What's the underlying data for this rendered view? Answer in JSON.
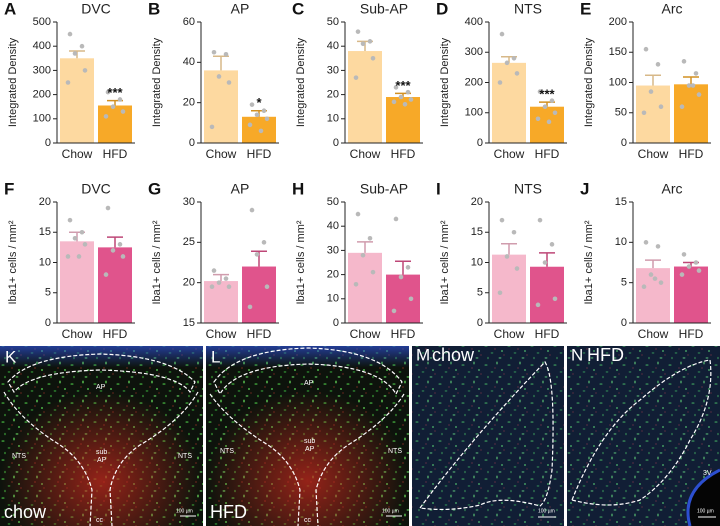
{
  "chart_data": [
    {
      "type": "bar",
      "letter": "A",
      "title": "DVC",
      "y_label": "Integrated Density",
      "categories": [
        "Chow",
        "HFD"
      ],
      "values": [
        350,
        155
      ],
      "errors": [
        30,
        20
      ],
      "points": [
        [
          450,
          400,
          370,
          300,
          250
        ],
        [
          210,
          180,
          150,
          130,
          110
        ]
      ],
      "colors": [
        "#fdd9a0",
        "#f7a928"
      ],
      "ylim": [
        0,
        500
      ],
      "yticks": [
        0,
        100,
        200,
        300,
        400,
        500
      ],
      "annotations": [
        null,
        "***"
      ]
    },
    {
      "type": "bar",
      "letter": "B",
      "title": "AP",
      "y_label": "Integrated Density",
      "categories": [
        "Chow",
        "HFD"
      ],
      "values": [
        36,
        13
      ],
      "errors": [
        7,
        3
      ],
      "points": [
        [
          45,
          44,
          33,
          30,
          8
        ],
        [
          19,
          16,
          14,
          12,
          9,
          6
        ]
      ],
      "colors": [
        "#fdd9a0",
        "#f7a928"
      ],
      "ylim": [
        0,
        60
      ],
      "yticks": [
        0,
        20,
        40,
        60
      ],
      "annotations": [
        null,
        "*"
      ]
    },
    {
      "type": "bar",
      "letter": "C",
      "title": "Sub-AP",
      "y_label": "Integrated Density",
      "categories": [
        "Chow",
        "HFD"
      ],
      "values": [
        38,
        19
      ],
      "errors": [
        4,
        1.5
      ],
      "points": [
        [
          46,
          42,
          41,
          35,
          27
        ],
        [
          23,
          21,
          19,
          18,
          17,
          16
        ]
      ],
      "colors": [
        "#fdd9a0",
        "#f7a928"
      ],
      "ylim": [
        0,
        50
      ],
      "yticks": [
        0,
        10,
        20,
        30,
        40,
        50
      ],
      "annotations": [
        null,
        "***"
      ]
    },
    {
      "type": "bar",
      "letter": "D",
      "title": "NTS",
      "y_label": "Integrated Density",
      "categories": [
        "Chow",
        "HFD"
      ],
      "values": [
        265,
        120
      ],
      "errors": [
        20,
        15
      ],
      "points": [
        [
          360,
          280,
          265,
          230,
          200
        ],
        [
          170,
          140,
          120,
          100,
          80,
          70
        ]
      ],
      "colors": [
        "#fdd9a0",
        "#f7a928"
      ],
      "ylim": [
        0,
        400
      ],
      "yticks": [
        0,
        100,
        200,
        300,
        400
      ],
      "annotations": [
        null,
        "***"
      ]
    },
    {
      "type": "bar",
      "letter": "E",
      "title": "Arc",
      "y_label": "Integrated Density",
      "categories": [
        "Chow",
        "HFD"
      ],
      "values": [
        95,
        97
      ],
      "errors": [
        17,
        12
      ],
      "points": [
        [
          155,
          130,
          85,
          60,
          50
        ],
        [
          135,
          115,
          95,
          80,
          60,
          95
        ]
      ],
      "colors": [
        "#fdd9a0",
        "#f7a928"
      ],
      "ylim": [
        0,
        200
      ],
      "yticks": [
        0,
        50,
        100,
        150,
        200
      ],
      "annotations": [
        null,
        null
      ]
    },
    {
      "type": "bar",
      "letter": "F",
      "title": "DVC",
      "y_label": "Iba1+ cells / mm²",
      "categories": [
        "Chow",
        "HFD"
      ],
      "values": [
        13.5,
        12.5
      ],
      "errors": [
        1.5,
        1.7
      ],
      "points": [
        [
          17,
          15,
          14,
          13,
          11,
          11
        ],
        [
          19,
          13,
          12,
          11,
          8
        ]
      ],
      "colors": [
        "#f5b8cb",
        "#e0548c"
      ],
      "ylim": [
        0,
        20
      ],
      "yticks": [
        0,
        5,
        10,
        15,
        20
      ],
      "annotations": [
        null,
        null
      ]
    },
    {
      "type": "bar",
      "letter": "G",
      "title": "AP",
      "y_label": "Iba1+ cells / mm²",
      "categories": [
        "Chow",
        "HFD"
      ],
      "values": [
        20.2,
        22
      ],
      "errors": [
        0.8,
        1.9
      ],
      "points": [
        [
          21.5,
          20.5,
          20,
          19.5,
          19.5
        ],
        [
          29,
          25,
          23.5,
          19.5,
          17
        ]
      ],
      "colors": [
        "#f5b8cb",
        "#e0548c"
      ],
      "ylim": [
        15,
        30
      ],
      "yticks": [
        15,
        20,
        25,
        30
      ],
      "annotations": [
        null,
        null
      ]
    },
    {
      "type": "bar",
      "letter": "H",
      "title": "Sub-AP",
      "y_label": "Iba1+ cells / mm²",
      "categories": [
        "Chow",
        "HFD"
      ],
      "values": [
        29,
        20
      ],
      "errors": [
        4.5,
        5.5
      ],
      "points": [
        [
          45,
          35,
          28,
          21,
          16
        ],
        [
          43,
          23,
          19,
          10,
          5
        ]
      ],
      "colors": [
        "#f5b8cb",
        "#e0548c"
      ],
      "ylim": [
        0,
        50
      ],
      "yticks": [
        0,
        10,
        20,
        30,
        40,
        50
      ],
      "annotations": [
        null,
        null
      ]
    },
    {
      "type": "bar",
      "letter": "I",
      "title": "NTS",
      "y_label": "Iba1+ cells / mm²",
      "categories": [
        "Chow",
        "HFD"
      ],
      "values": [
        11.3,
        9.3
      ],
      "errors": [
        1.8,
        2.3
      ],
      "points": [
        [
          17,
          15,
          11,
          9,
          5
        ],
        [
          17,
          13,
          10,
          4,
          3
        ]
      ],
      "colors": [
        "#f5b8cb",
        "#e0548c"
      ],
      "ylim": [
        0,
        20
      ],
      "yticks": [
        0,
        5,
        10,
        15,
        20
      ],
      "annotations": [
        null,
        null
      ]
    },
    {
      "type": "bar",
      "letter": "J",
      "title": "Arc",
      "y_label": "Iba1+ cells / mm²",
      "categories": [
        "Chow",
        "HFD"
      ],
      "values": [
        6.8,
        7
      ],
      "errors": [
        1,
        0.5
      ],
      "points": [
        [
          10,
          9.5,
          6,
          5,
          4.5,
          5.5
        ],
        [
          8.5,
          7.5,
          7,
          6.5,
          6
        ]
      ],
      "colors": [
        "#f5b8cb",
        "#e0548c"
      ],
      "ylim": [
        0,
        15
      ],
      "yticks": [
        0,
        5,
        10,
        15
      ],
      "annotations": [
        null,
        null
      ]
    }
  ],
  "images": [
    {
      "letter": "K",
      "caption": "chow",
      "labels": [
        "AP",
        "NTS",
        "NTS",
        "sub",
        "AP",
        "cc"
      ],
      "scale": "100 µm"
    },
    {
      "letter": "L",
      "caption": "HFD",
      "labels": [
        "AP",
        "NTS",
        "NTS",
        "sub",
        "AP",
        "cc"
      ],
      "scale": "100 µm"
    },
    {
      "letter": "M",
      "caption": "chow",
      "scale": "100 µm"
    },
    {
      "letter": "N",
      "caption": "HFD",
      "labels": [
        "3V"
      ],
      "scale": "100 µm"
    }
  ]
}
